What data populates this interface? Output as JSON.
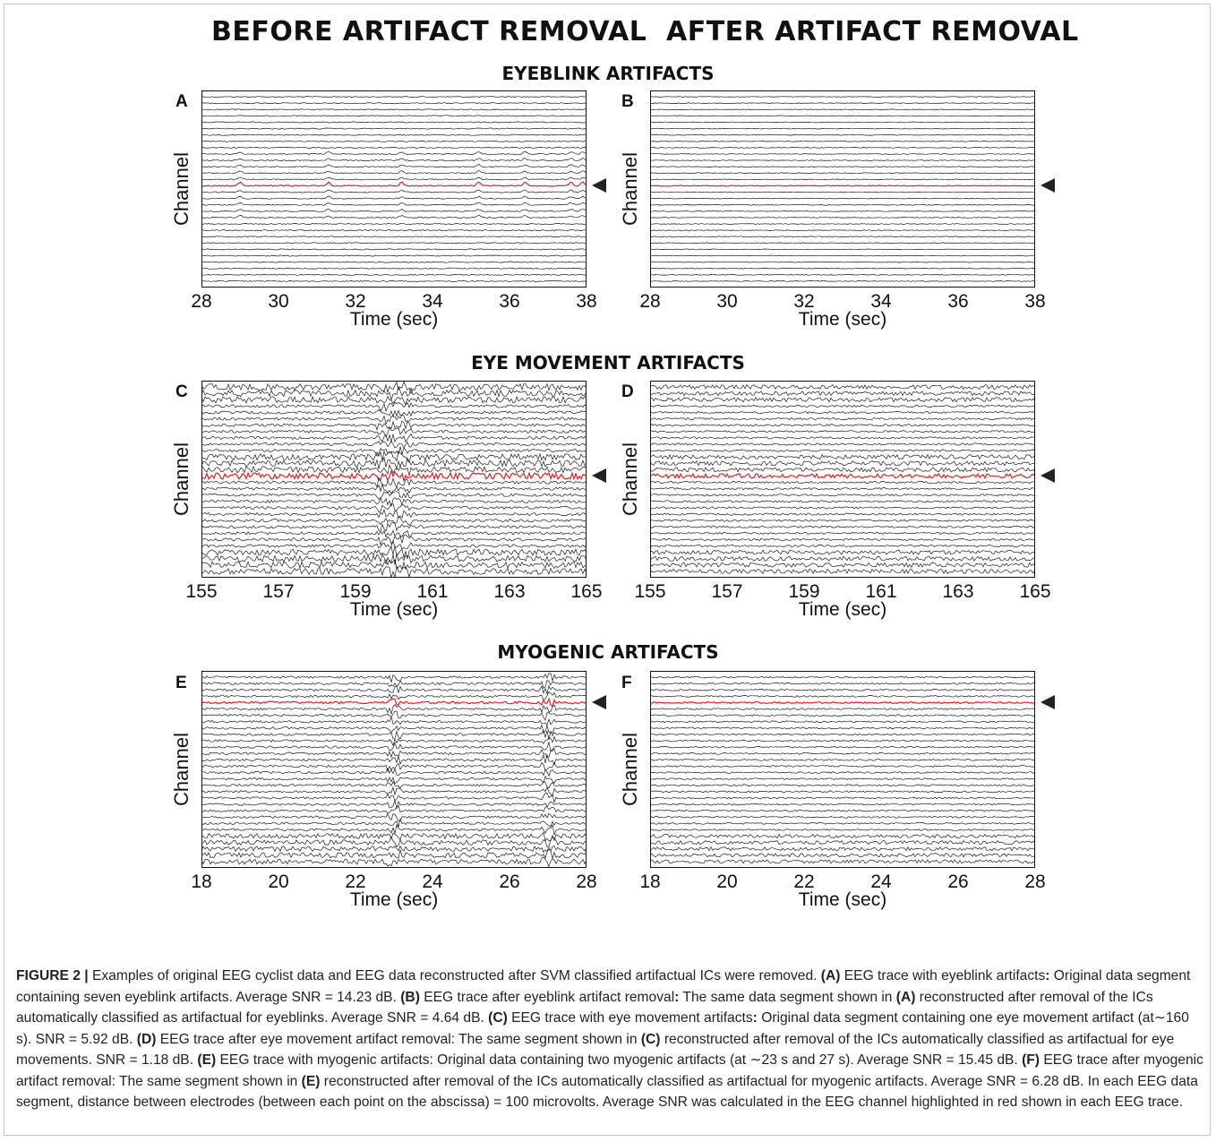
{
  "headings": {
    "before": "BEFORE ARTIFACT REMOVAL",
    "after": "AFTER ARTIFACT REMOVAL"
  },
  "sections": [
    {
      "title": "EYEBLINK ARTIFACTS"
    },
    {
      "title": "EYE MOVEMENT ARTIFACTS"
    },
    {
      "title": "MYOGENIC ARTIFACTS"
    }
  ],
  "panels": [
    {
      "letter": "A",
      "ylabel": "Channel",
      "xlabel": "Time (sec)",
      "ticks": [
        "28",
        "30",
        "32",
        "34",
        "36",
        "38"
      ]
    },
    {
      "letter": "B",
      "ylabel": "Channel",
      "xlabel": "Time (sec)",
      "ticks": [
        "28",
        "30",
        "32",
        "34",
        "36",
        "38"
      ]
    },
    {
      "letter": "C",
      "ylabel": "Channel",
      "xlabel": "Time (sec)",
      "ticks": [
        "155",
        "157",
        "159",
        "161",
        "163",
        "165"
      ]
    },
    {
      "letter": "D",
      "ylabel": "Channel",
      "xlabel": "Time (sec)",
      "ticks": [
        "155",
        "157",
        "159",
        "161",
        "163",
        "165"
      ]
    },
    {
      "letter": "E",
      "ylabel": "Channel",
      "xlabel": "Time (sec)",
      "ticks": [
        "18",
        "20",
        "22",
        "24",
        "26",
        "28"
      ]
    },
    {
      "letter": "F",
      "ylabel": "Channel",
      "xlabel": "Time (sec)",
      "ticks": [
        "18",
        "20",
        "22",
        "24",
        "26",
        "28"
      ]
    }
  ],
  "colors": {
    "trace": "#1a1a1a",
    "highlight": "#e02020",
    "marker": "#222222"
  },
  "chart_data": [
    {
      "type": "line",
      "panel": "A",
      "x_range": [
        28,
        38
      ],
      "highlighted_channel": "red",
      "artifact_times": [
        29.0,
        31.3,
        33.2,
        35.2,
        36.4,
        37.6,
        37.9
      ]
    },
    {
      "type": "line",
      "panel": "B",
      "x_range": [
        28,
        38
      ],
      "highlighted_channel": "red",
      "artifact_times": []
    },
    {
      "type": "line",
      "panel": "C",
      "x_range": [
        155,
        165
      ],
      "highlighted_channel": "red",
      "artifact_times": [
        160
      ]
    },
    {
      "type": "line",
      "panel": "D",
      "x_range": [
        155,
        165
      ],
      "highlighted_channel": "red",
      "artifact_times": []
    },
    {
      "type": "line",
      "panel": "E",
      "x_range": [
        18,
        28
      ],
      "highlighted_channel": "red",
      "artifact_times": [
        23,
        27
      ]
    },
    {
      "type": "line",
      "panel": "F",
      "x_range": [
        18,
        28
      ],
      "highlighted_channel": "red",
      "artifact_times": []
    }
  ],
  "caption": {
    "figure_label": "FIGURE 2 |",
    "parts": [
      {
        "t": " Examples of original EEG cyclist data and EEG data reconstructed after SVM classified artifactual ICs were removed. "
      },
      {
        "b": "(A)"
      },
      {
        "t": " EEG trace with eyeblink artifacts"
      },
      {
        "b": ":"
      },
      {
        "t": " Original data segment containing seven eyeblink artifacts. Average SNR = 14.23 dB. "
      },
      {
        "b": "(B)"
      },
      {
        "t": " EEG trace after eyeblink artifact removal"
      },
      {
        "b": ":"
      },
      {
        "t": " The same data segment shown in "
      },
      {
        "b": "(A)"
      },
      {
        "t": " reconstructed after removal of the ICs automatically classified as artifactual for eyeblinks. Average SNR = 4.64 dB. "
      },
      {
        "b": "(C)"
      },
      {
        "t": " EEG trace with eye movement artifacts"
      },
      {
        "b": ":"
      },
      {
        "t": " Original data segment containing one eye movement artifact (at∼160 s). SNR = 5.92 dB. "
      },
      {
        "b": "(D)"
      },
      {
        "t": " EEG trace after eye movement artifact removal: The same segment shown in "
      },
      {
        "b": "(C)"
      },
      {
        "t": " reconstructed after removal of the ICs automatically classified as artifactual for eye movements. SNR = 1.18 dB. "
      },
      {
        "b": "(E)"
      },
      {
        "t": " EEG trace with myogenic artifacts: Original data containing two myogenic artifacts (at ∼23 s and 27 s). Average SNR = 15.45 dB. "
      },
      {
        "b": "(F)"
      },
      {
        "t": " EEG trace after myogenic artifact removal: The same segment shown in "
      },
      {
        "b": "(E)"
      },
      {
        "t": " reconstructed after removal of the ICs automatically classified as artifactual for myogenic artifacts. Average SNR = 6.28 dB. In each EEG data segment, distance between electrodes (between each point on the abscissa) = 100 microvolts. Average SNR was calculated in the EEG channel highlighted in red shown in each EEG trace."
      }
    ]
  }
}
